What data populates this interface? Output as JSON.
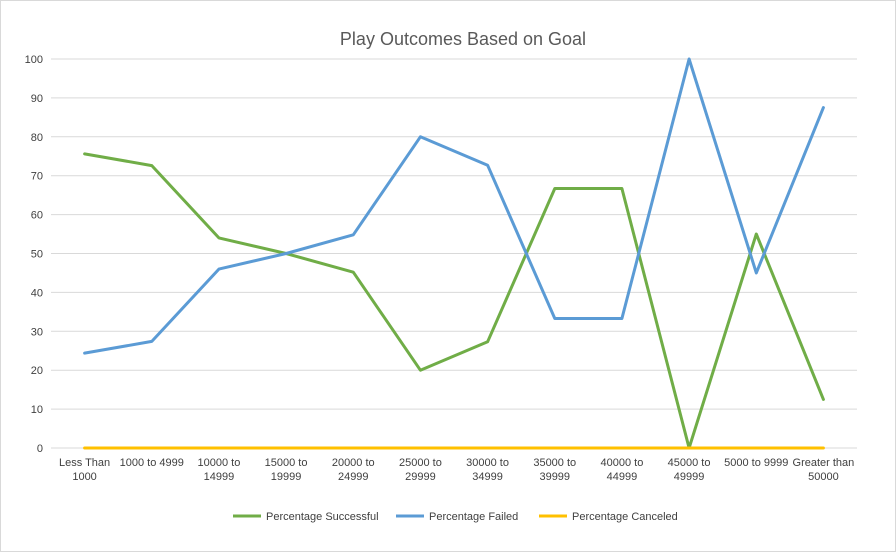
{
  "chart_data": {
    "type": "line",
    "title": "Play Outcomes Based on Goal",
    "xlabel": "",
    "ylabel": "",
    "ylim": [
      0,
      100
    ],
    "yticks": [
      0,
      10,
      20,
      30,
      40,
      50,
      60,
      70,
      80,
      90,
      100
    ],
    "grid": true,
    "legend_position": "bottom",
    "categories": [
      [
        "Less Than",
        "1000"
      ],
      [
        "1000 to 4999"
      ],
      [
        "10000 to",
        "14999"
      ],
      [
        "15000 to",
        "19999"
      ],
      [
        "20000 to",
        "24999"
      ],
      [
        "25000 to",
        "29999"
      ],
      [
        "30000 to",
        "34999"
      ],
      [
        "35000 to",
        "39999"
      ],
      [
        "40000 to",
        "44999"
      ],
      [
        "45000 to",
        "49999"
      ],
      [
        "5000 to 9999"
      ],
      [
        "Greater than",
        "50000"
      ]
    ],
    "series": [
      {
        "name": "Percentage Successful",
        "color": "#70ad47",
        "values": [
          75.6,
          72.6,
          54.0,
          50.0,
          45.2,
          20.0,
          27.3,
          66.7,
          66.7,
          0,
          55.0,
          12.5
        ]
      },
      {
        "name": "Percentage Failed",
        "color": "#5b9bd5",
        "values": [
          24.4,
          27.4,
          46.0,
          50.0,
          54.8,
          80.0,
          72.7,
          33.3,
          33.3,
          100,
          45.0,
          87.5
        ]
      },
      {
        "name": "Percentage Canceled",
        "color": "#ffc000",
        "values": [
          0,
          0,
          0,
          0,
          0,
          0,
          0,
          0,
          0,
          0,
          0,
          0
        ]
      }
    ]
  }
}
